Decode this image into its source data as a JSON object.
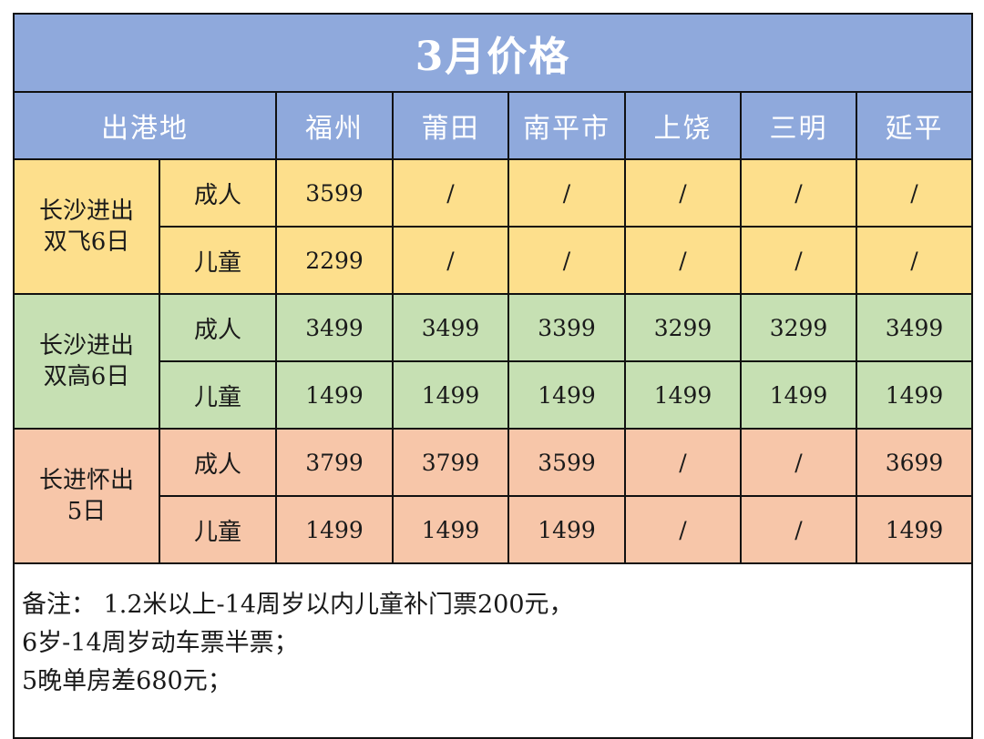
{
  "title": "3月价格",
  "header": {
    "origin_label": "出港地",
    "cities": [
      "福州",
      "莆田",
      "南平市",
      "上饶",
      "三明",
      "延平"
    ]
  },
  "groups": [
    {
      "route_line1": "长沙进出",
      "route_line2": "双飞6日",
      "rows": [
        {
          "type": "成人",
          "prices": [
            "3599",
            "/",
            "/",
            "/",
            "/",
            "/"
          ]
        },
        {
          "type": "儿童",
          "prices": [
            "2299",
            "/",
            "/",
            "/",
            "/",
            "/"
          ]
        }
      ]
    },
    {
      "route_line1": "长沙进出",
      "route_line2": "双高6日",
      "rows": [
        {
          "type": "成人",
          "prices": [
            "3499",
            "3499",
            "3399",
            "3299",
            "3299",
            "3499"
          ]
        },
        {
          "type": "儿童",
          "prices": [
            "1499",
            "1499",
            "1499",
            "1499",
            "1499",
            "1499"
          ]
        }
      ]
    },
    {
      "route_line1": "长进怀出",
      "route_line2": "5日",
      "rows": [
        {
          "type": "成人",
          "prices": [
            "3799",
            "3799",
            "3599",
            "/",
            "/",
            "3699"
          ]
        },
        {
          "type": "儿童",
          "prices": [
            "1499",
            "1499",
            "1499",
            "/",
            "/",
            "1499"
          ]
        }
      ]
    }
  ],
  "notes": {
    "line1": "备注：  1.2米以上-14周岁以内儿童补门票200元，",
    "line2": "6岁-14周岁动车票半票；",
    "line3": "5晚单房差680元；"
  }
}
